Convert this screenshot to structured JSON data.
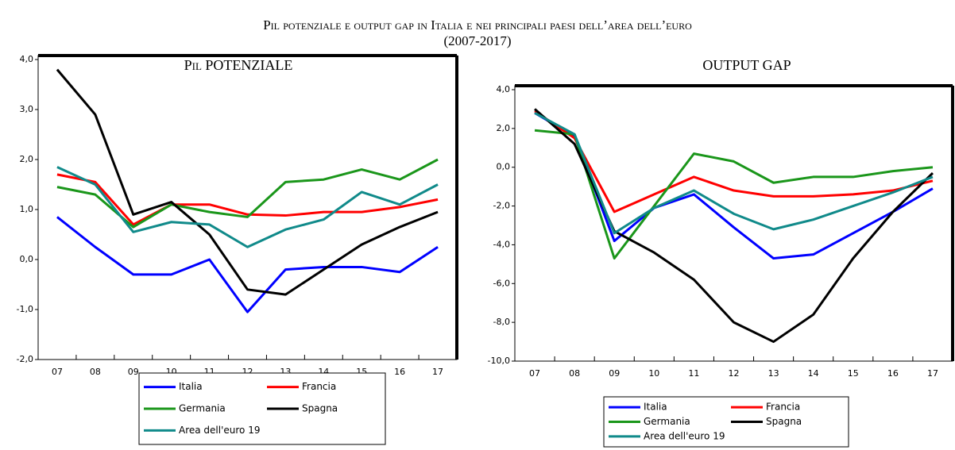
{
  "title": "Pil potenziale e output gap in Italia e nei principali paesi dell’area dell’euro",
  "subtitle": "(2007-2017)",
  "chart_data": [
    {
      "type": "line",
      "title": "Pil POTENZIALE",
      "categories": [
        "07",
        "08",
        "09",
        "10",
        "11",
        "12",
        "13",
        "14",
        "15",
        "16",
        "17"
      ],
      "ylim": [
        -2,
        4
      ],
      "yticks": [
        {
          "value": -2,
          "label": "-2,0"
        },
        {
          "value": -1,
          "label": "-1,0"
        },
        {
          "value": 0,
          "label": "0,0"
        },
        {
          "value": 1,
          "label": "1,0"
        },
        {
          "value": 2,
          "label": "2,0"
        },
        {
          "value": 3,
          "label": "3,0"
        },
        {
          "value": 4,
          "label": "4,0"
        }
      ],
      "series": [
        {
          "name": "Italia",
          "color": "#0000ff",
          "values": [
            0.85,
            0.25,
            -0.3,
            -0.3,
            0.0,
            -1.05,
            -0.2,
            -0.15,
            -0.15,
            -0.25,
            0.25
          ]
        },
        {
          "name": "Francia",
          "color": "#ff0000",
          "values": [
            1.7,
            1.55,
            0.7,
            1.1,
            1.1,
            0.9,
            0.88,
            0.95,
            0.95,
            1.05,
            1.2
          ]
        },
        {
          "name": "Germania",
          "color": "#1a961a",
          "values": [
            1.45,
            1.3,
            0.65,
            1.1,
            0.95,
            0.85,
            1.55,
            1.6,
            1.8,
            1.6,
            2.0
          ]
        },
        {
          "name": "Spagna",
          "color": "#000000",
          "values": [
            3.8,
            2.9,
            0.9,
            1.15,
            0.5,
            -0.6,
            -0.7,
            -0.2,
            0.3,
            0.65,
            0.95
          ]
        },
        {
          "name": "Area dell'euro 19",
          "color": "#108a8a",
          "values": [
            1.85,
            1.5,
            0.55,
            0.75,
            0.7,
            0.25,
            0.6,
            0.8,
            1.35,
            1.1,
            1.5
          ]
        }
      ]
    },
    {
      "type": "line",
      "title": "OUTPUT GAP",
      "categories": [
        "07",
        "08",
        "09",
        "10",
        "11",
        "12",
        "13",
        "14",
        "15",
        "16",
        "17"
      ],
      "ylim": [
        -10,
        4
      ],
      "yticks": [
        {
          "value": -10,
          "label": "-10,0"
        },
        {
          "value": -8,
          "label": "-8,0"
        },
        {
          "value": -6,
          "label": "-6,0"
        },
        {
          "value": -4,
          "label": "-4,0"
        },
        {
          "value": -2,
          "label": "-2,0"
        },
        {
          "value": 0,
          "label": "0,0"
        },
        {
          "value": 2,
          "label": "2,0"
        },
        {
          "value": 4,
          "label": "4,0"
        }
      ],
      "series": [
        {
          "name": "Italia",
          "color": "#0000ff",
          "values": [
            2.8,
            1.6,
            -3.8,
            -2.1,
            -1.4,
            -3.1,
            -4.7,
            -4.5,
            -3.4,
            -2.3,
            -1.1
          ]
        },
        {
          "name": "Francia",
          "color": "#ff0000",
          "values": [
            2.9,
            1.5,
            -2.3,
            -1.4,
            -0.5,
            -1.2,
            -1.5,
            -1.5,
            -1.4,
            -1.2,
            -0.7
          ]
        },
        {
          "name": "Germania",
          "color": "#1a961a",
          "values": [
            1.9,
            1.7,
            -4.7,
            -2.0,
            0.7,
            0.3,
            -0.8,
            -0.5,
            -0.5,
            -0.2,
            0.0
          ]
        },
        {
          "name": "Spagna",
          "color": "#000000",
          "values": [
            3.0,
            1.2,
            -3.3,
            -4.4,
            -5.8,
            -8.0,
            -9.0,
            -7.6,
            -4.7,
            -2.3,
            -0.3
          ]
        },
        {
          "name": "Area dell'euro 19",
          "color": "#108a8a",
          "values": [
            2.8,
            1.7,
            -3.4,
            -2.1,
            -1.2,
            -2.4,
            -3.2,
            -2.7,
            -2.0,
            -1.3,
            -0.5
          ]
        }
      ]
    }
  ]
}
